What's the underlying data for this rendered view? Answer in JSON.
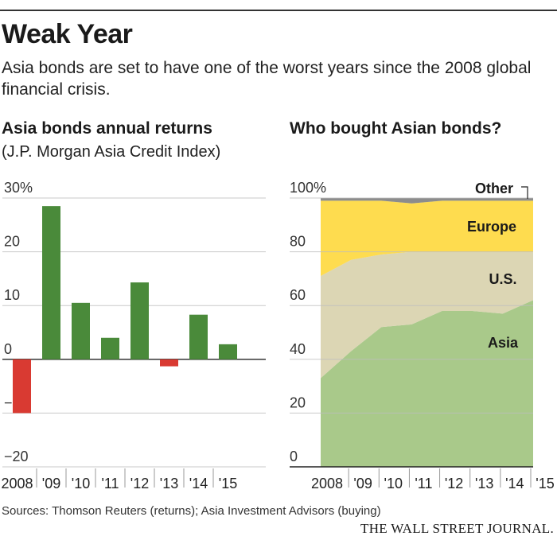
{
  "title": "Weak Year",
  "subtitle": "Asia bonds are set to have one of the worst years since the 2008 global financial crisis.",
  "source": "Sources: Thomson Reuters (returns); Asia Investment Advisors (buying)",
  "masthead": "THE WALL STREET JOURNAL.",
  "colors": {
    "positive": "#4a8a3a",
    "negative": "#d93a32",
    "asia": "#a9c98a",
    "us": "#dcd6b4",
    "europe": "#fedc4f",
    "other": "#8c8c8c"
  },
  "chart_data": [
    {
      "type": "bar",
      "title": "Asia bonds annual returns",
      "subtitle": "(J.P. Morgan Asia Credit Index)",
      "categories": [
        "2008",
        "'09",
        "'10",
        "'11",
        "'12",
        "'13",
        "'14",
        "'15"
      ],
      "values": [
        -10,
        28.5,
        10.5,
        4,
        14.3,
        -1.3,
        8.3,
        2.8
      ],
      "yticks": [
        "30%",
        "20",
        "10",
        "0",
        "−10",
        "−20"
      ],
      "ylim": [
        -20,
        30
      ],
      "unit": "%",
      "grid": true
    },
    {
      "type": "area",
      "title": "Who bought Asian bonds?",
      "categories": [
        "2008",
        "'09",
        "'10",
        "'11",
        "'12",
        "'13",
        "'14",
        "'15"
      ],
      "yticks": [
        "100%",
        "80",
        "60",
        "40",
        "20",
        "0"
      ],
      "ylim": [
        0,
        100
      ],
      "stacked": true,
      "series": [
        {
          "name": "Asia",
          "values": [
            33,
            43,
            52,
            53,
            58,
            58,
            57,
            62
          ]
        },
        {
          "name": "U.S.",
          "values": [
            38,
            34,
            27,
            27,
            22,
            22,
            23,
            18
          ]
        },
        {
          "name": "Europe",
          "values": [
            28,
            22,
            20,
            18,
            19,
            19,
            19,
            19
          ]
        },
        {
          "name": "Other",
          "values": [
            1,
            1,
            1,
            2,
            1,
            1,
            1,
            1
          ]
        }
      ]
    }
  ]
}
